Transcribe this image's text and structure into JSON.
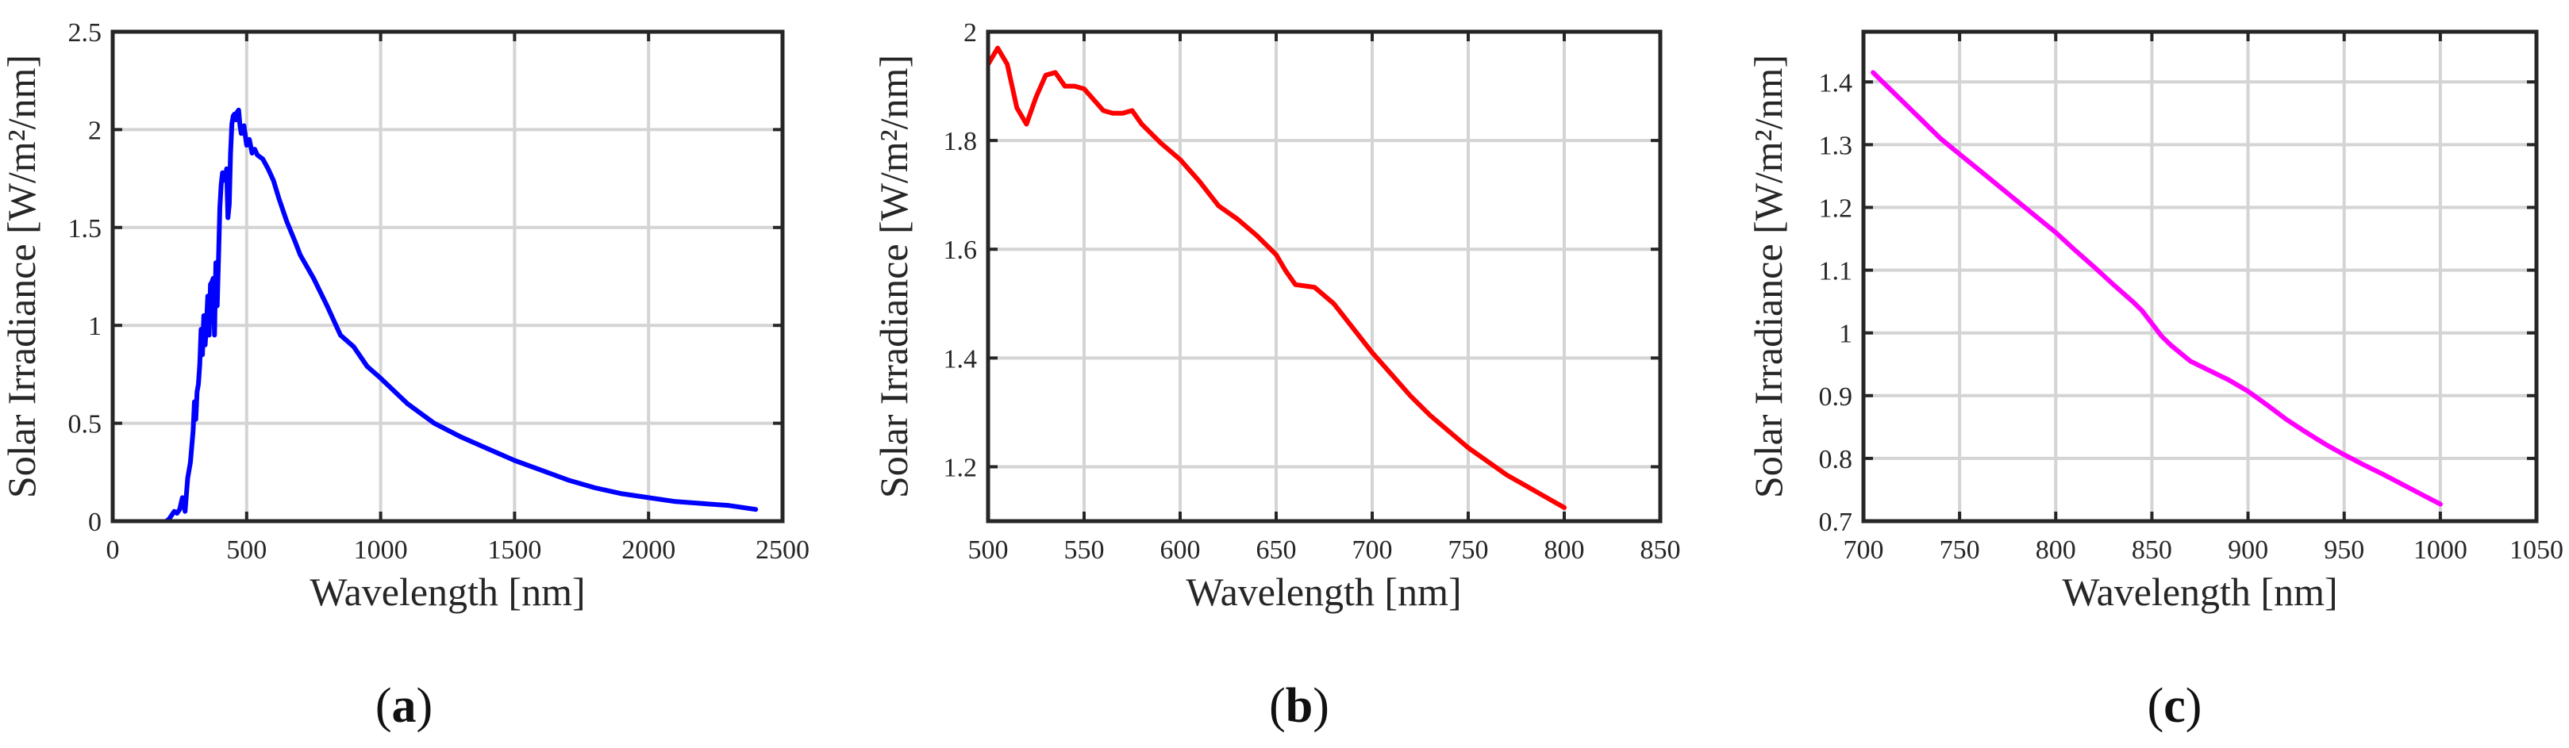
{
  "chart_data": [
    {
      "type": "line",
      "panel_label": "a",
      "xlabel": "Wavelength [nm]",
      "ylabel": "Solar Irradiance [W/m²/nm]",
      "xlim": [
        0,
        2500
      ],
      "ylim": [
        0,
        2.5
      ],
      "xticks": [
        0,
        500,
        1000,
        1500,
        2000,
        2500
      ],
      "yticks": [
        0,
        0.5,
        1,
        1.5,
        2,
        2.5
      ],
      "xtick_labels": [
        "0",
        "500",
        "1000",
        "1500",
        "2000",
        "2500"
      ],
      "ytick_labels": [
        "0",
        "0.5",
        "1",
        "1.5",
        "2",
        "2.5"
      ],
      "grid": true,
      "series": [
        {
          "name": "Solar irradiance",
          "color": "#0000ff",
          "x": [
            200,
            210,
            220,
            230,
            240,
            250,
            260,
            270,
            280,
            290,
            300,
            305,
            310,
            315,
            320,
            325,
            330,
            335,
            340,
            345,
            350,
            355,
            360,
            365,
            370,
            375,
            380,
            385,
            390,
            395,
            400,
            405,
            410,
            415,
            420,
            425,
            430,
            435,
            440,
            445,
            450,
            455,
            460,
            465,
            470,
            475,
            480,
            490,
            500,
            510,
            520,
            530,
            540,
            550,
            560,
            580,
            600,
            620,
            650,
            680,
            700,
            750,
            800,
            850,
            900,
            950,
            1000,
            1100,
            1200,
            1300,
            1400,
            1500,
            1600,
            1700,
            1800,
            1900,
            2000,
            2100,
            2200,
            2300,
            2400
          ],
          "y": [
            0.0,
            0.01,
            0.03,
            0.05,
            0.04,
            0.06,
            0.12,
            0.05,
            0.22,
            0.3,
            0.46,
            0.61,
            0.52,
            0.66,
            0.7,
            0.8,
            0.98,
            0.85,
            1.05,
            0.9,
            1.01,
            1.15,
            0.95,
            1.21,
            1.22,
            1.24,
            0.95,
            1.32,
            1.1,
            1.35,
            1.6,
            1.72,
            1.78,
            1.75,
            1.74,
            1.8,
            1.55,
            1.62,
            1.88,
            2.03,
            2.07,
            2.08,
            2.05,
            2.09,
            2.1,
            2.02,
            1.98,
            2.02,
            1.92,
            1.95,
            1.88,
            1.9,
            1.87,
            1.86,
            1.85,
            1.8,
            1.74,
            1.65,
            1.53,
            1.43,
            1.36,
            1.24,
            1.1,
            0.95,
            0.89,
            0.79,
            0.73,
            0.6,
            0.5,
            0.43,
            0.37,
            0.31,
            0.26,
            0.21,
            0.17,
            0.14,
            0.12,
            0.1,
            0.09,
            0.08,
            0.06
          ]
        }
      ]
    },
    {
      "type": "line",
      "panel_label": "b",
      "xlabel": "Wavelength [nm]",
      "ylabel": "Solar Irradiance [W/m²/nm]",
      "xlim": [
        500,
        850
      ],
      "ylim": [
        1.1,
        2
      ],
      "xticks": [
        500,
        550,
        600,
        650,
        700,
        750,
        800,
        850
      ],
      "yticks": [
        1.2,
        1.4,
        1.6,
        1.8,
        2
      ],
      "xtick_labels": [
        "500",
        "550",
        "600",
        "650",
        "700",
        "750",
        "800",
        "850"
      ],
      "ytick_labels": [
        "1.2",
        "1.4",
        "1.6",
        "1.8",
        "2"
      ],
      "grid": true,
      "series": [
        {
          "name": "Solar irradiance",
          "color": "#ff0000",
          "x": [
            500,
            505,
            510,
            515,
            520,
            525,
            530,
            535,
            540,
            545,
            550,
            555,
            560,
            565,
            570,
            575,
            580,
            590,
            600,
            610,
            620,
            630,
            640,
            650,
            655,
            660,
            670,
            680,
            690,
            700,
            710,
            720,
            730,
            740,
            750,
            760,
            770,
            780,
            790,
            800
          ],
          "y": [
            1.94,
            1.97,
            1.94,
            1.86,
            1.83,
            1.88,
            1.92,
            1.925,
            1.9,
            1.9,
            1.895,
            1.875,
            1.855,
            1.85,
            1.85,
            1.855,
            1.83,
            1.795,
            1.765,
            1.725,
            1.68,
            1.655,
            1.625,
            1.59,
            1.56,
            1.535,
            1.53,
            1.5,
            1.455,
            1.41,
            1.37,
            1.33,
            1.295,
            1.265,
            1.235,
            1.21,
            1.185,
            1.165,
            1.145,
            1.125
          ]
        }
      ]
    },
    {
      "type": "line",
      "panel_label": "c",
      "xlabel": "Wavelength [nm]",
      "ylabel": "Solar Irradiance [W/m²/nm]",
      "xlim": [
        700,
        1050
      ],
      "ylim": [
        0.7,
        1.48
      ],
      "xticks": [
        700,
        750,
        800,
        850,
        900,
        950,
        1000,
        1050
      ],
      "yticks": [
        0.7,
        0.8,
        0.9,
        1,
        1.1,
        1.2,
        1.3,
        1.4
      ],
      "xtick_labels": [
        "700",
        "750",
        "800",
        "850",
        "900",
        "950",
        "1000",
        "1050"
      ],
      "ytick_labels": [
        "0.7",
        "0.8",
        "0.9",
        "1",
        "1.1",
        "1.2",
        "1.3",
        "1.4"
      ],
      "grid": true,
      "series": [
        {
          "name": "Solar irradiance",
          "color": "#ff00ff",
          "x": [
            705,
            710,
            720,
            730,
            740,
            750,
            760,
            770,
            780,
            790,
            800,
            810,
            820,
            830,
            840,
            845,
            850,
            855,
            860,
            870,
            880,
            890,
            900,
            910,
            920,
            930,
            940,
            950,
            960,
            970,
            980,
            990,
            1000
          ],
          "y": [
            1.415,
            1.4,
            1.37,
            1.34,
            1.31,
            1.285,
            1.26,
            1.235,
            1.21,
            1.185,
            1.16,
            1.132,
            1.105,
            1.077,
            1.05,
            1.035,
            1.015,
            0.995,
            0.98,
            0.955,
            0.94,
            0.925,
            0.907,
            0.885,
            0.862,
            0.842,
            0.823,
            0.806,
            0.79,
            0.775,
            0.759,
            0.743,
            0.727
          ]
        }
      ]
    }
  ]
}
